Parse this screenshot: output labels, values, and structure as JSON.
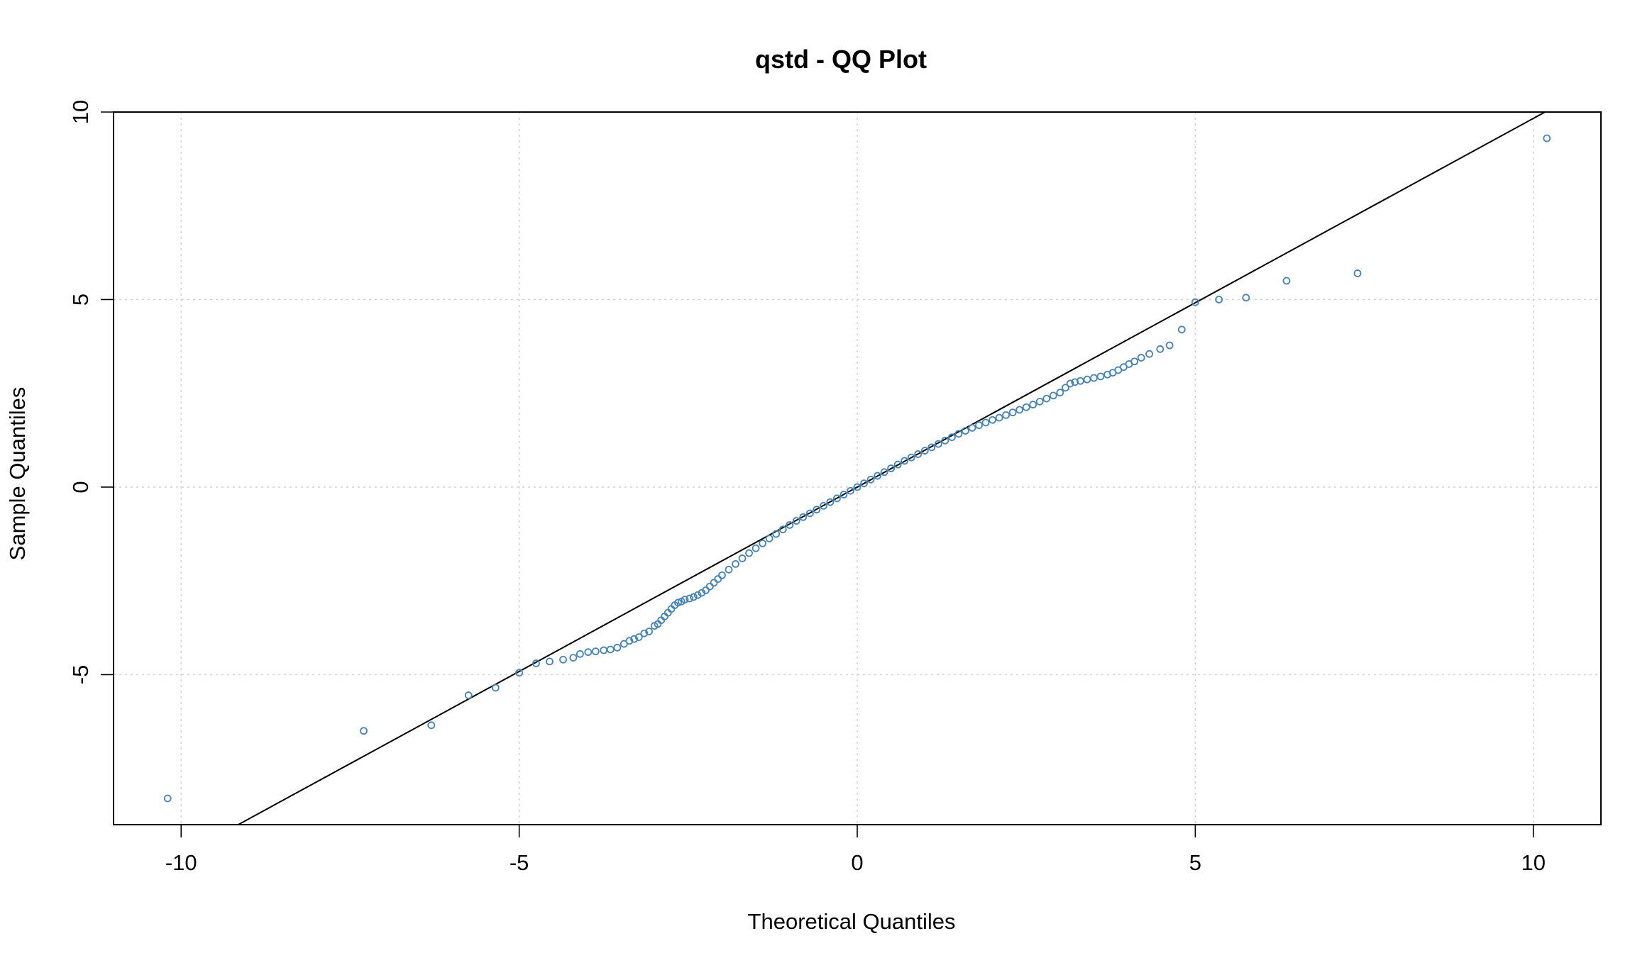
{
  "chart_data": {
    "type": "scatter",
    "title": "qstd - QQ Plot",
    "xlabel": "Theoretical Quantiles",
    "ylabel": "Sample Quantiles",
    "xlim": [
      -11,
      11
    ],
    "ylim": [
      -9,
      10
    ],
    "x_ticks": [
      -10,
      -5,
      0,
      5,
      10
    ],
    "y_ticks": [
      -5,
      0,
      5,
      10
    ],
    "x_tick_labels": [
      "-10",
      "-5",
      "0",
      "5",
      "10"
    ],
    "y_tick_labels": [
      "-5",
      "0",
      "5",
      "10"
    ],
    "grid": true,
    "point_color": "#4682b4",
    "line_color": "#000000",
    "reference_line": {
      "slope": 0.983,
      "intercept": 0.0
    },
    "series": [
      {
        "points": [
          [
            -10.2,
            -8.3
          ],
          [
            -7.3,
            -6.5
          ],
          [
            -6.3,
            -6.35
          ],
          [
            -5.75,
            -5.55
          ],
          [
            -5.35,
            -5.35
          ],
          [
            -5.0,
            -4.95
          ],
          [
            -4.75,
            -4.7
          ],
          [
            -4.55,
            -4.65
          ],
          [
            -4.35,
            -4.6
          ],
          [
            -4.2,
            -4.55
          ],
          [
            -4.1,
            -4.45
          ],
          [
            -3.98,
            -4.4
          ],
          [
            -3.87,
            -4.38
          ],
          [
            -3.75,
            -4.35
          ],
          [
            -3.65,
            -4.33
          ],
          [
            -3.55,
            -4.28
          ],
          [
            -3.45,
            -4.18
          ],
          [
            -3.37,
            -4.1
          ],
          [
            -3.3,
            -4.05
          ],
          [
            -3.23,
            -4.0
          ],
          [
            -3.15,
            -3.9
          ],
          [
            -3.08,
            -3.85
          ],
          [
            -3.0,
            -3.7
          ],
          [
            -2.95,
            -3.65
          ],
          [
            -2.9,
            -3.55
          ],
          [
            -2.85,
            -3.45
          ],
          [
            -2.8,
            -3.35
          ],
          [
            -2.75,
            -3.25
          ],
          [
            -2.7,
            -3.15
          ],
          [
            -2.65,
            -3.08
          ],
          [
            -2.6,
            -3.05
          ],
          [
            -2.55,
            -3.0
          ],
          [
            -2.48,
            -2.97
          ],
          [
            -2.42,
            -2.93
          ],
          [
            -2.36,
            -2.88
          ],
          [
            -2.3,
            -2.82
          ],
          [
            -2.24,
            -2.75
          ],
          [
            -2.18,
            -2.65
          ],
          [
            -2.12,
            -2.55
          ],
          [
            -2.06,
            -2.45
          ],
          [
            -2.0,
            -2.35
          ],
          [
            -1.9,
            -2.2
          ],
          [
            -1.8,
            -2.05
          ],
          [
            -1.7,
            -1.9
          ],
          [
            -1.6,
            -1.76
          ],
          [
            -1.5,
            -1.63
          ],
          [
            -1.4,
            -1.5
          ],
          [
            -1.3,
            -1.37
          ],
          [
            -1.2,
            -1.25
          ],
          [
            -1.1,
            -1.13
          ],
          [
            -1.0,
            -1.01
          ],
          [
            -0.9,
            -0.9
          ],
          [
            -0.8,
            -0.8
          ],
          [
            -0.7,
            -0.7
          ],
          [
            -0.6,
            -0.6
          ],
          [
            -0.5,
            -0.5
          ],
          [
            -0.4,
            -0.4
          ],
          [
            -0.3,
            -0.3
          ],
          [
            -0.2,
            -0.2
          ],
          [
            -0.1,
            -0.1
          ],
          [
            0.0,
            0.0
          ],
          [
            0.1,
            0.1
          ],
          [
            0.2,
            0.2
          ],
          [
            0.3,
            0.3
          ],
          [
            0.4,
            0.4
          ],
          [
            0.5,
            0.5
          ],
          [
            0.6,
            0.6
          ],
          [
            0.7,
            0.7
          ],
          [
            0.8,
            0.79
          ],
          [
            0.9,
            0.88
          ],
          [
            1.0,
            0.97
          ],
          [
            1.1,
            1.06
          ],
          [
            1.2,
            1.15
          ],
          [
            1.3,
            1.24
          ],
          [
            1.4,
            1.33
          ],
          [
            1.5,
            1.42
          ],
          [
            1.6,
            1.5
          ],
          [
            1.7,
            1.58
          ],
          [
            1.8,
            1.65
          ],
          [
            1.9,
            1.72
          ],
          [
            2.0,
            1.79
          ],
          [
            2.1,
            1.85
          ],
          [
            2.2,
            1.92
          ],
          [
            2.3,
            1.99
          ],
          [
            2.4,
            2.06
          ],
          [
            2.5,
            2.13
          ],
          [
            2.6,
            2.2
          ],
          [
            2.7,
            2.28
          ],
          [
            2.8,
            2.36
          ],
          [
            2.9,
            2.44
          ],
          [
            3.0,
            2.52
          ],
          [
            3.08,
            2.65
          ],
          [
            3.15,
            2.76
          ],
          [
            3.22,
            2.8
          ],
          [
            3.3,
            2.83
          ],
          [
            3.4,
            2.87
          ],
          [
            3.5,
            2.91
          ],
          [
            3.6,
            2.95
          ],
          [
            3.7,
            3.0
          ],
          [
            3.78,
            3.05
          ],
          [
            3.86,
            3.12
          ],
          [
            3.94,
            3.2
          ],
          [
            4.02,
            3.28
          ],
          [
            4.1,
            3.35
          ],
          [
            4.2,
            3.45
          ],
          [
            4.32,
            3.55
          ],
          [
            4.48,
            3.68
          ],
          [
            4.62,
            3.78
          ],
          [
            4.8,
            4.2
          ],
          [
            5.0,
            4.93
          ],
          [
            5.35,
            5.0
          ],
          [
            5.75,
            5.05
          ],
          [
            6.35,
            5.5
          ],
          [
            7.4,
            5.7
          ],
          [
            10.2,
            9.3
          ]
        ]
      }
    ]
  }
}
